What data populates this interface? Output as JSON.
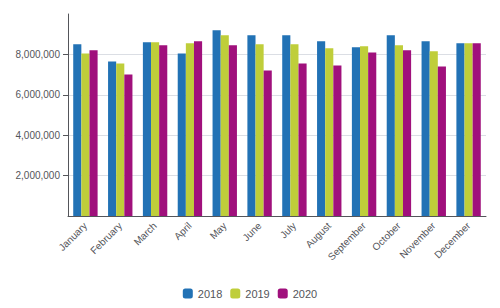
{
  "chart_data": {
    "type": "bar",
    "categories": [
      "January",
      "February",
      "March",
      "April",
      "May",
      "June",
      "July",
      "August",
      "September",
      "October",
      "November",
      "December"
    ],
    "series": [
      {
        "name": "2018",
        "color": "#2272B5",
        "values": [
          8500000,
          7650000,
          8600000,
          8050000,
          9200000,
          8950000,
          8950000,
          8650000,
          8350000,
          8950000,
          8650000,
          8550000
        ]
      },
      {
        "name": "2019",
        "color": "#BFCE3A",
        "values": [
          8050000,
          7550000,
          8600000,
          8550000,
          8950000,
          8500000,
          8500000,
          8300000,
          8400000,
          8450000,
          8150000,
          8550000
        ]
      },
      {
        "name": "2020",
        "color": "#A0107C",
        "values": [
          8200000,
          7000000,
          8450000,
          8650000,
          8450000,
          7200000,
          7550000,
          7450000,
          8100000,
          8200000,
          7400000,
          8550000
        ]
      }
    ],
    "ylim": [
      0,
      10000000
    ],
    "yticks": [
      {
        "value": 2000000,
        "label": "2,000,000"
      },
      {
        "value": 4000000,
        "label": "4,000,000"
      },
      {
        "value": 6000000,
        "label": "6,000,000"
      },
      {
        "value": 8000000,
        "label": "8,000,000"
      }
    ],
    "grid": true,
    "legend": "bottom"
  }
}
